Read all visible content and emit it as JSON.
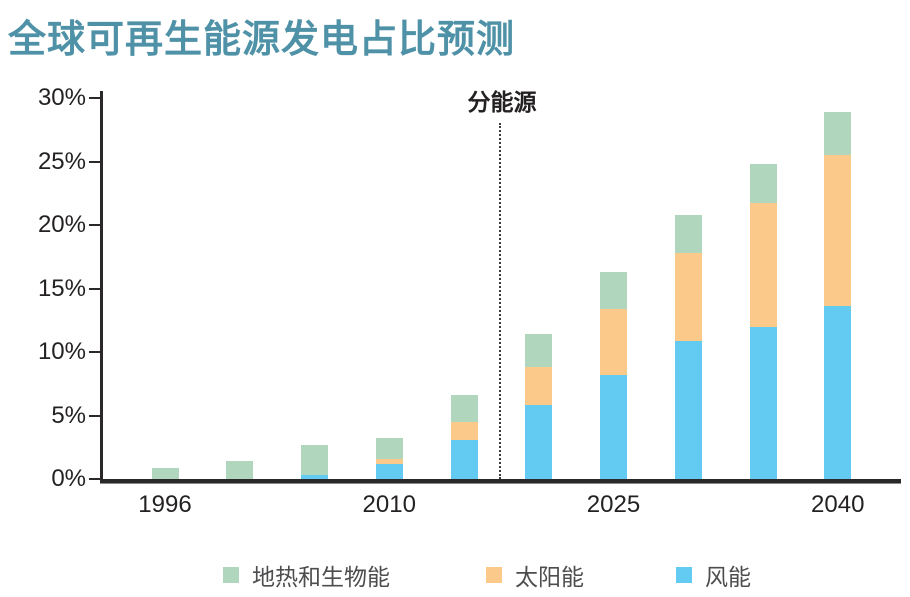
{
  "page": {
    "title": "全球可再生能源发电占比预测"
  },
  "theme": {
    "title_color": "#4f92a7",
    "axis_color": "#2b2829",
    "text_color": "#242122",
    "wind_color": "#63cbf1",
    "solar_color": "#fbca8b",
    "geo_color": "#b0d7bd"
  },
  "chart_data": {
    "type": "bar",
    "subtype": "stacked-column",
    "title": "全球可再生能源发电占比预测",
    "annotation": "分能源",
    "num_bars": 10,
    "x_tick_labels": [
      "1996",
      "2010",
      "2025",
      "2040"
    ],
    "labeled_bar_indices": [
      0,
      3,
      6,
      9
    ],
    "y_tick_labels": [
      "0%",
      "5%",
      "10%",
      "15%",
      "20%",
      "25%",
      "30%"
    ],
    "ylim": [
      0,
      30
    ],
    "y_unit": "%",
    "grid": false,
    "separator_after_bar_index": 4,
    "stack_order_note": "bottom-to-top: 风能, 太阳能, 地热和生物能",
    "series": [
      {
        "name": "风能",
        "color": "#63cbf1",
        "values": [
          0,
          0,
          0.3,
          1.2,
          3.1,
          5.8,
          8.2,
          10.9,
          12.0,
          13.6
        ]
      },
      {
        "name": "太阳能",
        "color": "#fbca8b",
        "values": [
          0,
          0,
          0,
          0.4,
          1.4,
          3.0,
          5.2,
          6.9,
          9.7,
          11.9
        ]
      },
      {
        "name": "地热和生物能",
        "color": "#b0d7bd",
        "values": [
          0.9,
          1.4,
          2.4,
          1.6,
          2.1,
          2.6,
          2.9,
          3.0,
          3.1,
          3.4
        ]
      }
    ],
    "totals": [
      0.9,
      1.4,
      2.7,
      3.2,
      6.6,
      11.4,
      16.3,
      20.8,
      24.8,
      28.9
    ]
  },
  "legend": {
    "items": [
      {
        "label": "地热和生物能",
        "swatch": "#b0d7bd"
      },
      {
        "label": "太阳能",
        "swatch": "#fbca8b"
      },
      {
        "label": "风能",
        "swatch": "#63cbf1"
      }
    ]
  }
}
